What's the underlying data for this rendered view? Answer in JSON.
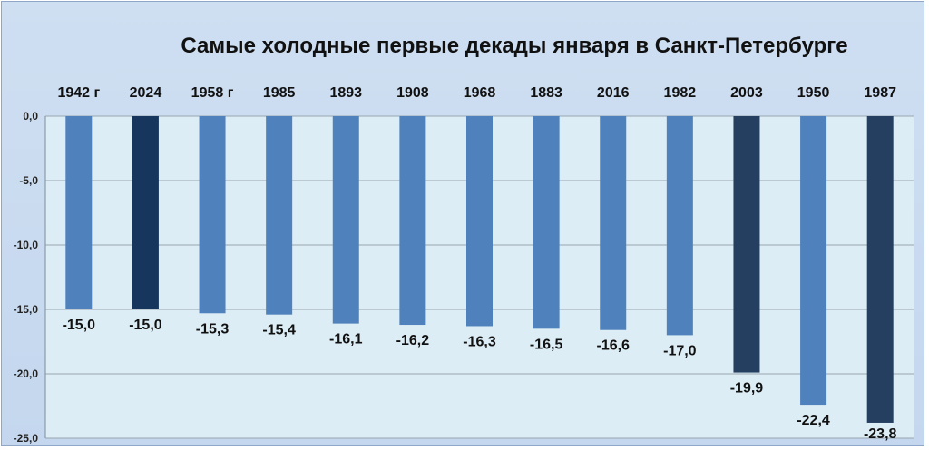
{
  "chart_data": {
    "type": "bar",
    "title": "Самые холодные первые декады  января в Санкт-Петербурге",
    "categories": [
      "1942 г",
      "2024",
      "1958 г",
      "1985",
      "1893",
      "1908",
      "1968",
      "1883",
      "2016",
      "1982",
      "2003",
      "1950",
      "1987"
    ],
    "values": [
      -15.0,
      -15.0,
      -15.3,
      -15.4,
      -16.1,
      -16.2,
      -16.3,
      -16.5,
      -16.6,
      -17.0,
      -19.9,
      -22.4,
      -23.8
    ],
    "value_labels": [
      "-15,0",
      "-15,0",
      "-15,3",
      "-15,4",
      "-16,1",
      "-16,2",
      "-16,3",
      "-16,5",
      "-16,6",
      "-17,0",
      "-19,9",
      "-22,4",
      "-23,8"
    ],
    "bar_colors": [
      "#4f81bd",
      "#17365d",
      "#4f81bd",
      "#4f81bd",
      "#4f81bd",
      "#4f81bd",
      "#4f81bd",
      "#4f81bd",
      "#4f81bd",
      "#4f81bd",
      "#243f60",
      "#4f81bd",
      "#243f60"
    ],
    "ylim": [
      -25,
      0
    ],
    "yticks": [
      0,
      -5,
      -10,
      -15,
      -20,
      -25
    ],
    "ytick_labels": [
      "0,0",
      "-5,0",
      "-10,0",
      "-15,0",
      "-20,0",
      "-25,0"
    ],
    "xlabel": "",
    "ylabel": "",
    "grid": true,
    "category_axis_position": "top",
    "plot_background": "#dcedf5",
    "grid_color": "#9aa6b0"
  }
}
